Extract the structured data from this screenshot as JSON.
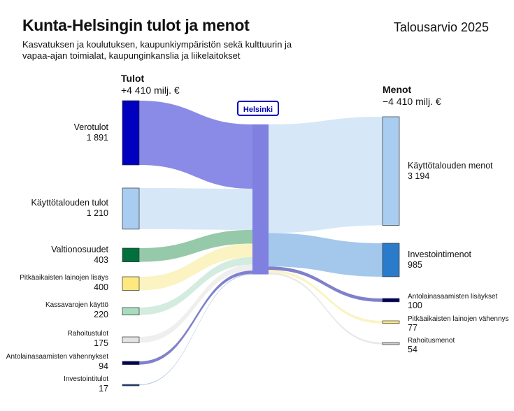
{
  "title": "Kunta-Helsingin tulot ja menot",
  "budget_label": "Talousarvio 2025",
  "subtitle": "Kasvatuksen ja koulutuksen, kaupunkiympäristön sekä kulttuurin ja vapaa-ajan toimialat, kaupunginkanslia ja liikelaitokset",
  "center_label": "Helsinki",
  "income_header": {
    "title": "Tulot",
    "total": "+4 410 milj. €"
  },
  "expense_header": {
    "title": "Menot",
    "total": "−4 410 milj. €"
  },
  "income": [
    {
      "label": "Verotulot",
      "value": "1 891",
      "amount": 1891,
      "color": "#0000bf",
      "flow_color": "#8a8be6"
    },
    {
      "label": "Käyttötalouden tulot",
      "value": "1 210",
      "amount": 1210,
      "color": "#a9cdf0",
      "flow_color": "#d6e7f7"
    },
    {
      "label": "Valtionosuudet",
      "value": "403",
      "amount": 403,
      "color": "#00703c",
      "flow_color": "#96c9aa"
    },
    {
      "label": "Pitkäaikaisten lainojen lisäys",
      "value": "400",
      "amount": 400,
      "color": "#fde97f",
      "flow_color": "#fbf3c2"
    },
    {
      "label": "Kassavarojen käyttö",
      "value": "220",
      "amount": 220,
      "color": "#a9dbbf",
      "flow_color": "#d3ecdf"
    },
    {
      "label": "Rahoitustulot",
      "value": "175",
      "amount": 175,
      "color": "#e3e3e3",
      "flow_color": "#efefef"
    },
    {
      "label": "Antolainasaamisten vähennykset",
      "value": "94",
      "amount": 94,
      "color": "#00005e",
      "flow_color": "#8080cc"
    },
    {
      "label": "Investointitulot",
      "value": "17",
      "amount": 17,
      "color": "#1a3d8f",
      "flow_color": "#a9c4ea"
    }
  ],
  "expenses": [
    {
      "label": "Käyttötalouden menot",
      "value": "3 194",
      "amount": 3194,
      "color": "#a9cdf0",
      "flow_color": "#d6e7f7"
    },
    {
      "label": "Investointimenot",
      "value": "985",
      "amount": 985,
      "color": "#2a7bc9",
      "flow_color": "#a3c8ec"
    },
    {
      "label": "Antolainasaamisten lisäykset",
      "value": "100",
      "amount": 100,
      "color": "#00005e",
      "flow_color": "#8080cc"
    },
    {
      "label": "Pitkäaikaisten lainojen vähennys",
      "value": "77",
      "amount": 77,
      "color": "#fde97f",
      "flow_color": "#fbf3c2"
    },
    {
      "label": "Rahoitusmenot",
      "value": "54",
      "amount": 54,
      "color": "#cfcfcf",
      "flow_color": "#e8e8e8"
    }
  ],
  "center_color": "#8080e0"
}
